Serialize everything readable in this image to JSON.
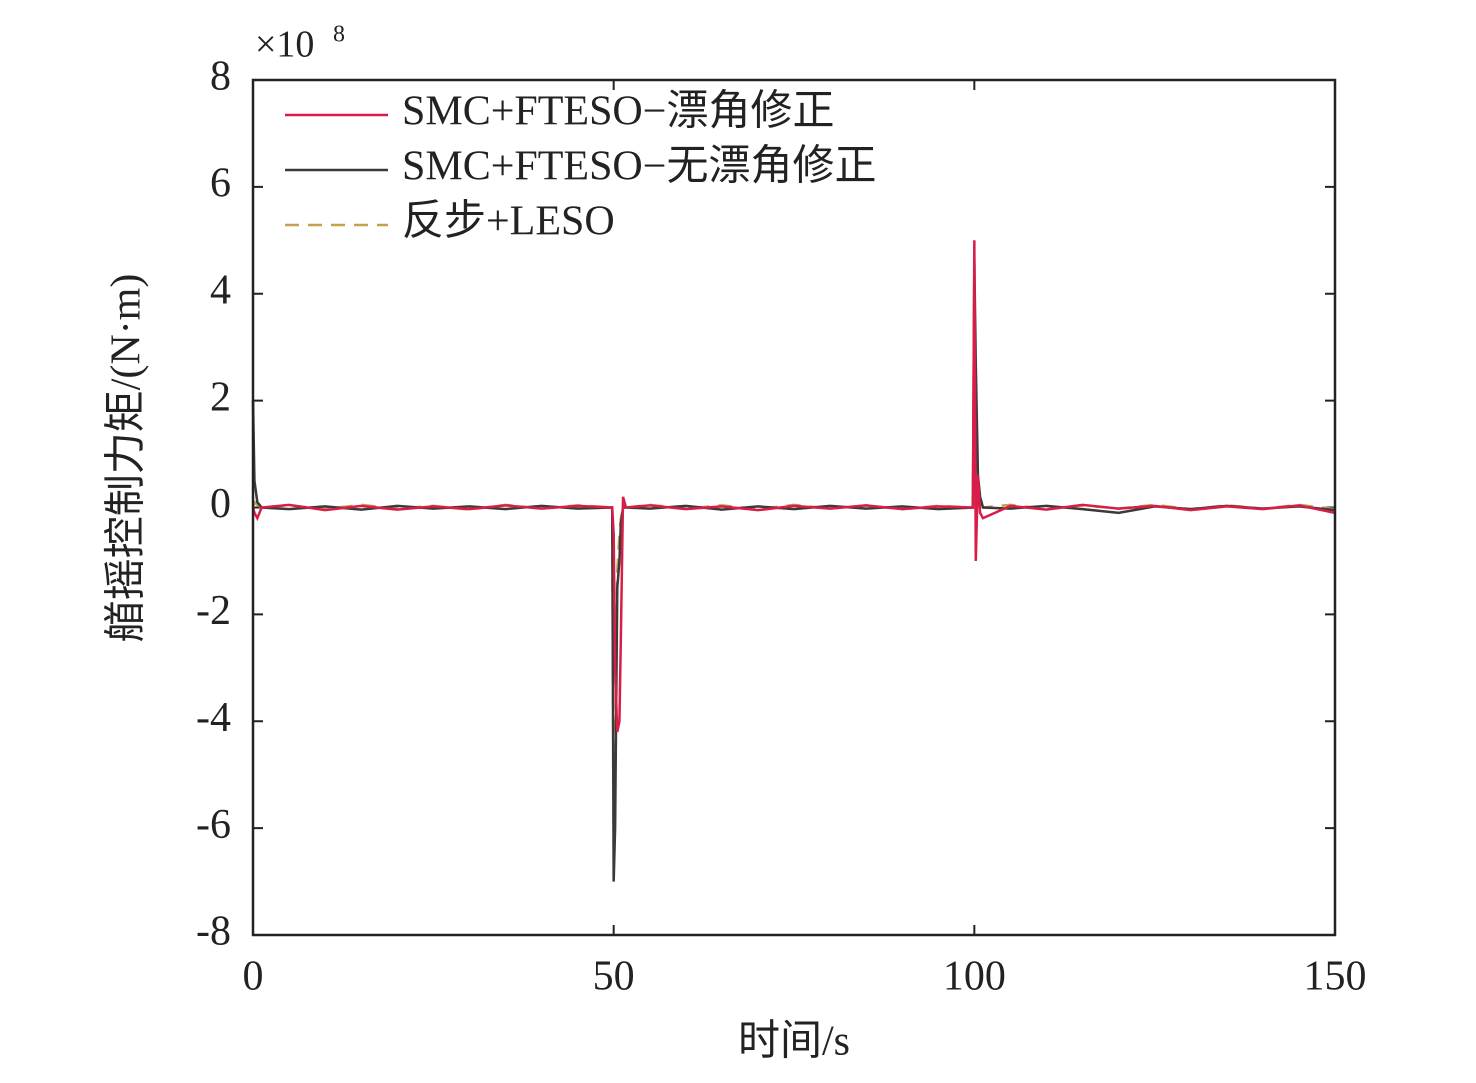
{
  "chart_data": {
    "type": "line",
    "y_label": "艏摇控制力矩/(N·m)",
    "x_label": "时间/s",
    "y_multiplier": {
      "base": "×10",
      "exponent": "8"
    },
    "x": [
      0,
      0.2,
      0.6,
      1.2,
      5,
      10,
      15,
      20,
      25,
      30,
      35,
      40,
      45,
      49.8,
      50,
      50.2,
      50.5,
      50.8,
      51,
      51.3,
      51.7,
      55,
      60,
      65,
      70,
      75,
      80,
      85,
      90,
      95,
      99.8,
      100,
      100.2,
      100.5,
      100.8,
      101.2,
      105,
      110,
      115,
      120,
      125,
      130,
      135,
      140,
      145,
      150
    ],
    "series": [
      {
        "name": "反步+LESO",
        "color": "#c4a24c",
        "dashed": true,
        "values": [
          0,
          0.1,
          0.05,
          0,
          0.04,
          -0.03,
          0.05,
          -0.02,
          0.03,
          -0.04,
          0.05,
          -0.02,
          0.04,
          0,
          -6,
          -5,
          -1.2,
          -0.5,
          -0.2,
          0,
          0,
          0.05,
          -0.02,
          0.04,
          -0.03,
          0.05,
          -0.02,
          0.04,
          -0.03,
          0.03,
          0,
          2.8,
          1,
          0.3,
          0.1,
          0,
          0.05,
          -0.03,
          0.04,
          -0.02,
          0.05,
          -0.03,
          0.04,
          -0.02,
          0.05,
          -0.03
        ]
      },
      {
        "name": "SMC+FTESO−无漂角修正",
        "color": "#3a3a3a",
        "dashed": false,
        "values": [
          2,
          0.5,
          0.1,
          0,
          -0.03,
          0.02,
          -0.04,
          0.03,
          -0.02,
          0.02,
          -0.03,
          0.03,
          -0.02,
          0,
          -7,
          -6,
          -1.5,
          -1,
          -0.3,
          0,
          0,
          -0.02,
          0.03,
          -0.04,
          0.02,
          -0.03,
          0.03,
          -0.02,
          0.02,
          -0.03,
          0,
          4.6,
          2.7,
          0.6,
          0.2,
          0,
          -0.02,
          0.03,
          -0.03,
          -0.1,
          0.02,
          -0.03,
          0.03,
          -0.02,
          0.02,
          -0.05
        ]
      },
      {
        "name": "SMC+FTESO−漂角修正",
        "color": "#d81e48",
        "dashed": false,
        "values": [
          0,
          -0.1,
          -0.2,
          0,
          0.05,
          -0.05,
          0.03,
          -0.04,
          0.02,
          -0.03,
          0.04,
          -0.02,
          0.03,
          0,
          -0.5,
          -3,
          -4.2,
          -4,
          -2.4,
          0.2,
          0,
          0.04,
          -0.03,
          0.02,
          -0.05,
          0.03,
          -0.02,
          0.04,
          -0.03,
          0.02,
          0,
          5,
          -1,
          0.6,
          -0.1,
          -0.2,
          0.03,
          -0.04,
          0.05,
          -0.02,
          0.03,
          -0.05,
          0.02,
          -0.03,
          0.04,
          -0.1
        ]
      }
    ],
    "xlim": [
      0,
      150
    ],
    "xticks": [
      0,
      50,
      100,
      150
    ],
    "ylim": [
      -8,
      8
    ],
    "yticks": [
      -8,
      -6,
      -4,
      -2,
      0,
      2,
      4,
      6,
      8
    ],
    "legend": "upper left"
  }
}
